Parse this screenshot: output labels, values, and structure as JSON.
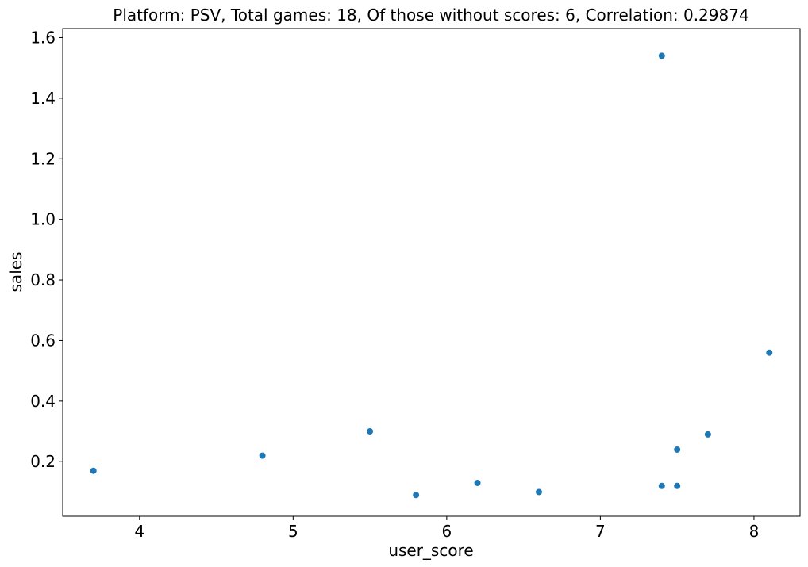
{
  "chart_data": {
    "type": "scatter",
    "title": "Platform: PSV, Total games: 18, Of those without scores: 6, Correlation: 0.29874",
    "xlabel": "user_score",
    "ylabel": "sales",
    "xlim": [
      3.5,
      8.3
    ],
    "ylim": [
      0.02,
      1.63
    ],
    "xticks": [
      4,
      5,
      6,
      7,
      8
    ],
    "yticks": [
      0.2,
      0.4,
      0.6,
      0.8,
      1.0,
      1.2,
      1.4,
      1.6
    ],
    "ytick_labels": [
      "0.2",
      "0.4",
      "0.6",
      "0.8",
      "1.0",
      "1.2",
      "1.4",
      "1.6"
    ],
    "grid": false,
    "marker_color": "#1f77b4",
    "points": [
      {
        "x": 3.7,
        "y": 0.17
      },
      {
        "x": 4.8,
        "y": 0.22
      },
      {
        "x": 5.5,
        "y": 0.3
      },
      {
        "x": 5.8,
        "y": 0.09
      },
      {
        "x": 6.2,
        "y": 0.13
      },
      {
        "x": 6.6,
        "y": 0.1
      },
      {
        "x": 7.4,
        "y": 1.54
      },
      {
        "x": 7.4,
        "y": 0.12
      },
      {
        "x": 7.5,
        "y": 0.24
      },
      {
        "x": 7.5,
        "y": 0.12
      },
      {
        "x": 7.7,
        "y": 0.29
      },
      {
        "x": 8.1,
        "y": 0.56
      }
    ]
  }
}
